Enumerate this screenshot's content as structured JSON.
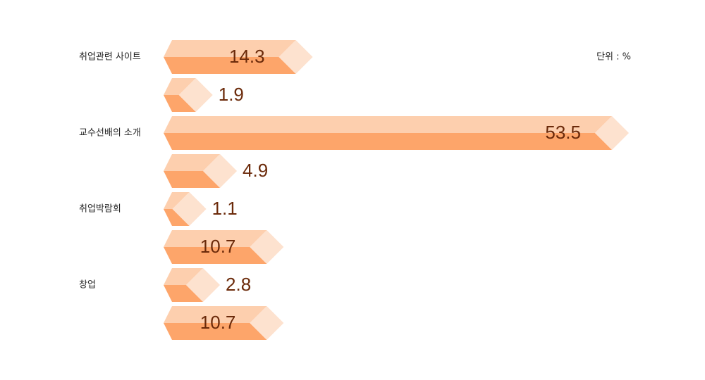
{
  "chart_data": {
    "type": "bar",
    "orientation": "horizontal",
    "unit_label": "단위 : %",
    "categories": [
      "취업관련 사이트",
      null,
      "교수선배의 소개",
      null,
      "취업박람회",
      null,
      "창업",
      null
    ],
    "values": [
      14.3,
      1.9,
      53.5,
      4.9,
      1.1,
      10.7,
      2.8,
      10.7
    ],
    "colors": {
      "top": "#fdcfae",
      "bottom": "#fda56a",
      "tip": "#fde2cf"
    }
  }
}
